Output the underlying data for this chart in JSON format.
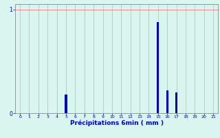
{
  "x_values": [
    0,
    1,
    2,
    3,
    4,
    5,
    6,
    7,
    8,
    9,
    10,
    11,
    12,
    13,
    14,
    15,
    16,
    17,
    18,
    19,
    20,
    21
  ],
  "y_values": [
    0,
    0,
    0,
    0,
    0,
    0.18,
    0,
    0,
    0,
    0,
    0,
    0,
    0,
    0,
    0,
    0.88,
    0.22,
    0.2,
    0,
    0,
    0,
    0
  ],
  "bar_color": "#0000bb",
  "background_color": "#d8f5f0",
  "xlabel": "Précipitations 6min ( mm )",
  "xlim": [
    -0.5,
    21.5
  ],
  "ylim": [
    0,
    1.05
  ],
  "yticks": [
    0,
    1
  ],
  "xticks": [
    0,
    1,
    2,
    3,
    4,
    5,
    6,
    7,
    8,
    9,
    10,
    11,
    12,
    13,
    14,
    15,
    16,
    17,
    18,
    19,
    20,
    21
  ],
  "grid_color_h": "#ff8888",
  "grid_color_v": "#b0c8c8",
  "tick_color": "#0000bb",
  "label_color": "#0000bb",
  "bar_width": 0.25
}
